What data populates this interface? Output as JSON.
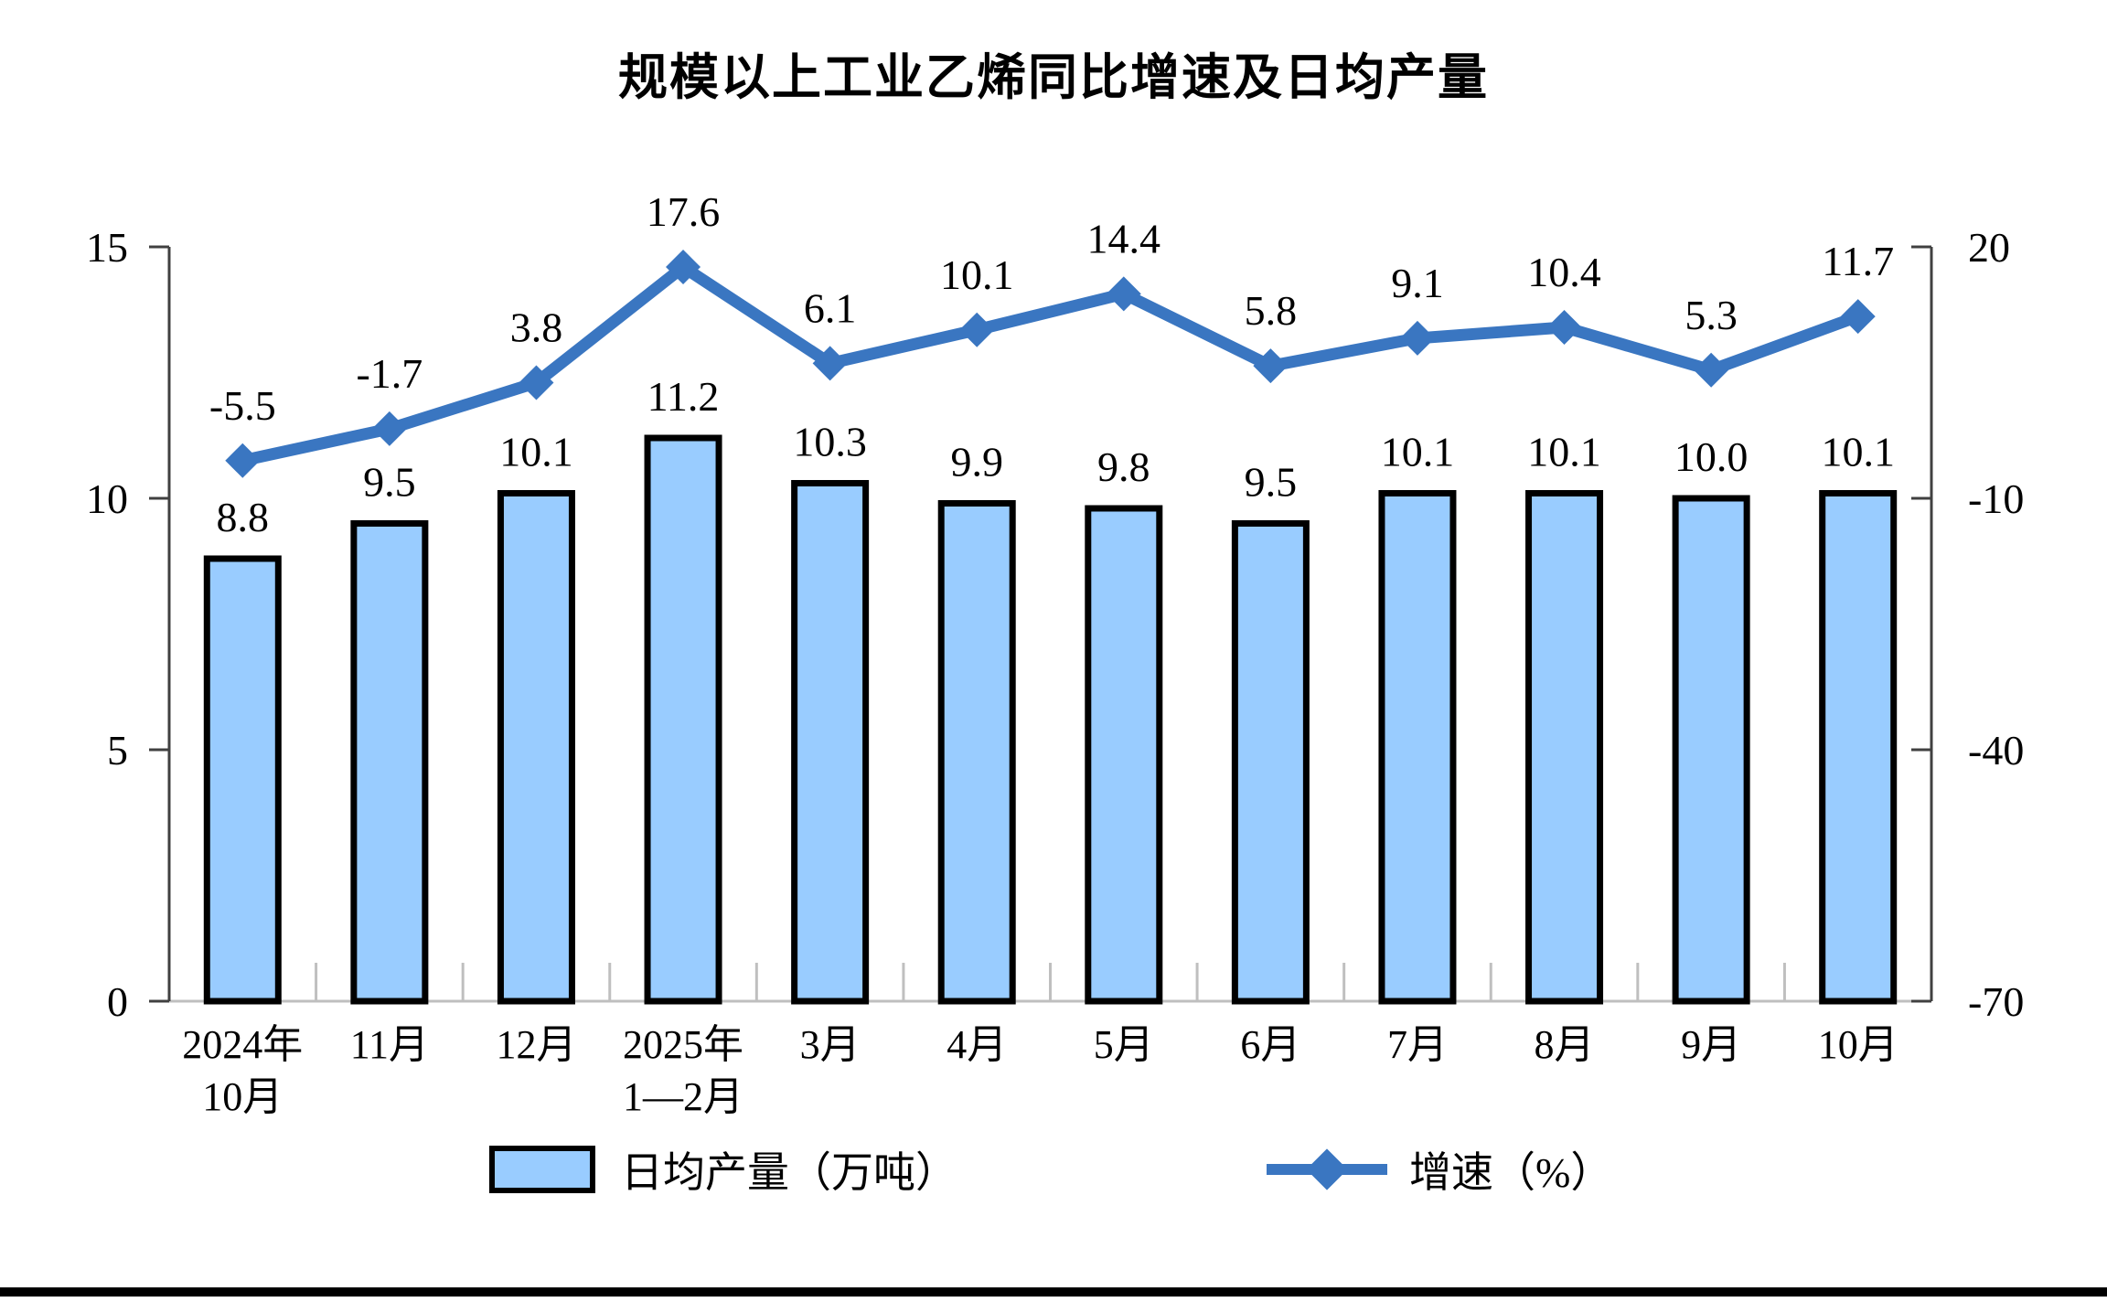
{
  "page_title": "规模以上工业乙烯同比增速及日均产量",
  "chart_data": {
    "type": "combo-bar-line",
    "title": "规模以上工业乙烯同比增速及日均产量",
    "categories": [
      [
        "2024年",
        "10月"
      ],
      [
        "11月"
      ],
      [
        "12月"
      ],
      [
        "2025年",
        "1—2月"
      ],
      [
        "3月"
      ],
      [
        "4月"
      ],
      [
        "5月"
      ],
      [
        "6月"
      ],
      [
        "7月"
      ],
      [
        "8月"
      ],
      [
        "9月"
      ],
      [
        "10月"
      ]
    ],
    "series": [
      {
        "name": "日均产量（万吨）",
        "type": "bar",
        "axis": "left",
        "values": [
          8.8,
          9.5,
          10.1,
          11.2,
          10.3,
          9.9,
          9.8,
          9.5,
          10.1,
          10.1,
          10.0,
          10.1
        ]
      },
      {
        "name": "增速（%）",
        "type": "line",
        "axis": "right",
        "marker": "diamond",
        "values": [
          -5.5,
          -1.7,
          3.8,
          17.6,
          6.1,
          10.1,
          14.4,
          5.8,
          9.1,
          10.4,
          5.3,
          11.7
        ]
      }
    ],
    "left_axis": {
      "range": [
        0,
        15
      ],
      "ticks": [
        0,
        5,
        10,
        15
      ]
    },
    "right_axis": {
      "range": [
        -70,
        20
      ],
      "ticks": [
        -70,
        -40,
        -10,
        20
      ]
    },
    "legend": [
      {
        "label": "日均产量（万吨）",
        "swatch": "bar"
      },
      {
        "label": "增速（%）",
        "swatch": "line"
      }
    ],
    "colors": {
      "bar_fill": "#99CCFF",
      "bar_border": "#000000",
      "line": "#3A76C1",
      "baseline": "#BFBFBF",
      "axis": "#404040",
      "text": "#000000"
    },
    "grid": false,
    "legend_position": "bottom"
  }
}
